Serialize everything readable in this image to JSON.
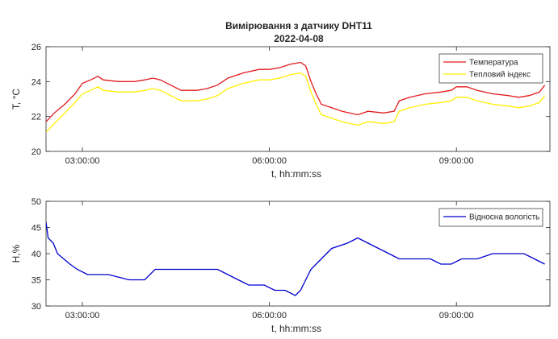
{
  "figure": {
    "title": "Вимірювання з датчику DHT11",
    "subtitle": "2022-04-08"
  },
  "chart_data": [
    {
      "type": "line",
      "xlabel": "t, hh:mm:ss",
      "ylabel": "T, °C",
      "xlim": [
        "02:25:00",
        "10:30:00"
      ],
      "ylim": [
        20,
        26
      ],
      "xticks": [
        "03:00:00",
        "06:00:00",
        "09:00:00"
      ],
      "yticks": [
        20,
        22,
        24,
        26
      ],
      "grid": false,
      "legend_position": "top-right",
      "series": [
        {
          "name": "Температура",
          "color": "#e31a1c",
          "points": [
            [
              "02:25:00",
              21.7
            ],
            [
              "02:33:00",
              22.2
            ],
            [
              "02:43:00",
              22.7
            ],
            [
              "02:53:00",
              23.3
            ],
            [
              "03:00:00",
              23.9
            ],
            [
              "03:08:00",
              24.1
            ],
            [
              "03:15:00",
              24.3
            ],
            [
              "03:20:00",
              24.1
            ],
            [
              "03:35:00",
              24.0
            ],
            [
              "03:50:00",
              24.0
            ],
            [
              "04:00:00",
              24.1
            ],
            [
              "04:08:00",
              24.2
            ],
            [
              "04:15:00",
              24.1
            ],
            [
              "04:25:00",
              23.8
            ],
            [
              "04:35:00",
              23.5
            ],
            [
              "04:50:00",
              23.5
            ],
            [
              "05:00:00",
              23.6
            ],
            [
              "05:10:00",
              23.8
            ],
            [
              "05:20:00",
              24.2
            ],
            [
              "05:35:00",
              24.5
            ],
            [
              "05:50:00",
              24.7
            ],
            [
              "06:00:00",
              24.7
            ],
            [
              "06:10:00",
              24.8
            ],
            [
              "06:20:00",
              25.0
            ],
            [
              "06:30:00",
              25.1
            ],
            [
              "06:35:00",
              24.9
            ],
            [
              "06:40:00",
              24.0
            ],
            [
              "06:45:00",
              23.3
            ],
            [
              "06:50:00",
              22.7
            ],
            [
              "07:00:00",
              22.5
            ],
            [
              "07:10:00",
              22.3
            ],
            [
              "07:25:00",
              22.1
            ],
            [
              "07:35:00",
              22.3
            ],
            [
              "07:50:00",
              22.2
            ],
            [
              "08:00:00",
              22.3
            ],
            [
              "08:05:00",
              22.9
            ],
            [
              "08:15:00",
              23.1
            ],
            [
              "08:30:00",
              23.3
            ],
            [
              "08:45:00",
              23.4
            ],
            [
              "08:55:00",
              23.5
            ],
            [
              "09:00:00",
              23.7
            ],
            [
              "09:10:00",
              23.7
            ],
            [
              "09:20:00",
              23.5
            ],
            [
              "09:35:00",
              23.3
            ],
            [
              "09:50:00",
              23.2
            ],
            [
              "10:00:00",
              23.1
            ],
            [
              "10:10:00",
              23.2
            ],
            [
              "10:20:00",
              23.4
            ],
            [
              "10:25:00",
              23.8
            ]
          ]
        },
        {
          "name": "Тепловий індекс",
          "color": "#ffee00",
          "points": [
            [
              "02:25:00",
              21.1
            ],
            [
              "02:33:00",
              21.6
            ],
            [
              "02:43:00",
              22.2
            ],
            [
              "02:53:00",
              22.8
            ],
            [
              "03:00:00",
              23.3
            ],
            [
              "03:08:00",
              23.5
            ],
            [
              "03:15:00",
              23.7
            ],
            [
              "03:20:00",
              23.5
            ],
            [
              "03:35:00",
              23.4
            ],
            [
              "03:50:00",
              23.4
            ],
            [
              "04:00:00",
              23.5
            ],
            [
              "04:08:00",
              23.6
            ],
            [
              "04:15:00",
              23.5
            ],
            [
              "04:25:00",
              23.2
            ],
            [
              "04:35:00",
              22.9
            ],
            [
              "04:50:00",
              22.9
            ],
            [
              "05:00:00",
              23.0
            ],
            [
              "05:10:00",
              23.2
            ],
            [
              "05:20:00",
              23.6
            ],
            [
              "05:35:00",
              23.9
            ],
            [
              "05:50:00",
              24.1
            ],
            [
              "06:00:00",
              24.1
            ],
            [
              "06:10:00",
              24.2
            ],
            [
              "06:20:00",
              24.4
            ],
            [
              "06:30:00",
              24.5
            ],
            [
              "06:35:00",
              24.3
            ],
            [
              "06:40:00",
              23.4
            ],
            [
              "06:45:00",
              22.7
            ],
            [
              "06:50:00",
              22.1
            ],
            [
              "07:00:00",
              21.9
            ],
            [
              "07:10:00",
              21.7
            ],
            [
              "07:25:00",
              21.5
            ],
            [
              "07:35:00",
              21.7
            ],
            [
              "07:50:00",
              21.6
            ],
            [
              "08:00:00",
              21.7
            ],
            [
              "08:05:00",
              22.3
            ],
            [
              "08:15:00",
              22.5
            ],
            [
              "08:30:00",
              22.7
            ],
            [
              "08:45:00",
              22.8
            ],
            [
              "08:55:00",
              22.9
            ],
            [
              "09:00:00",
              23.1
            ],
            [
              "09:10:00",
              23.1
            ],
            [
              "09:20:00",
              22.9
            ],
            [
              "09:35:00",
              22.7
            ],
            [
              "09:50:00",
              22.6
            ],
            [
              "10:00:00",
              22.5
            ],
            [
              "10:10:00",
              22.6
            ],
            [
              "10:20:00",
              22.8
            ],
            [
              "10:25:00",
              23.2
            ]
          ]
        }
      ]
    },
    {
      "type": "line",
      "xlabel": "t, hh:mm:ss",
      "ylabel": "H,%",
      "xlim": [
        "02:25:00",
        "10:30:00"
      ],
      "ylim": [
        30,
        50
      ],
      "xticks": [
        "03:00:00",
        "06:00:00",
        "09:00:00"
      ],
      "yticks": [
        30,
        35,
        40,
        45,
        50
      ],
      "grid": false,
      "legend_position": "top-right",
      "series": [
        {
          "name": "Відносна вологість",
          "color": "#0000cc",
          "points": [
            [
              "02:25:00",
              46
            ],
            [
              "02:27:00",
              43
            ],
            [
              "02:32:00",
              42
            ],
            [
              "02:36:00",
              40
            ],
            [
              "02:42:00",
              39
            ],
            [
              "02:48:00",
              38
            ],
            [
              "02:55:00",
              37
            ],
            [
              "03:05:00",
              36
            ],
            [
              "03:25:00",
              36
            ],
            [
              "03:45:00",
              35
            ],
            [
              "04:00:00",
              35
            ],
            [
              "04:10:00",
              37
            ],
            [
              "04:30:00",
              37
            ],
            [
              "04:50:00",
              37
            ],
            [
              "05:10:00",
              37
            ],
            [
              "05:20:00",
              36
            ],
            [
              "05:30:00",
              35
            ],
            [
              "05:40:00",
              34
            ],
            [
              "05:55:00",
              34
            ],
            [
              "06:05:00",
              33
            ],
            [
              "06:15:00",
              33
            ],
            [
              "06:25:00",
              32
            ],
            [
              "06:30:00",
              33
            ],
            [
              "06:35:00",
              35
            ],
            [
              "06:40:00",
              37
            ],
            [
              "06:45:00",
              38
            ],
            [
              "06:50:00",
              39
            ],
            [
              "07:00:00",
              41
            ],
            [
              "07:15:00",
              42
            ],
            [
              "07:25:00",
              43
            ],
            [
              "07:35:00",
              42
            ],
            [
              "07:45:00",
              41
            ],
            [
              "07:55:00",
              40
            ],
            [
              "08:05:00",
              39
            ],
            [
              "08:20:00",
              39
            ],
            [
              "08:35:00",
              39
            ],
            [
              "08:45:00",
              38
            ],
            [
              "08:55:00",
              38
            ],
            [
              "09:05:00",
              39
            ],
            [
              "09:20:00",
              39
            ],
            [
              "09:35:00",
              40
            ],
            [
              "09:50:00",
              40
            ],
            [
              "10:05:00",
              40
            ],
            [
              "10:15:00",
              39
            ],
            [
              "10:25:00",
              38
            ]
          ]
        }
      ]
    }
  ]
}
